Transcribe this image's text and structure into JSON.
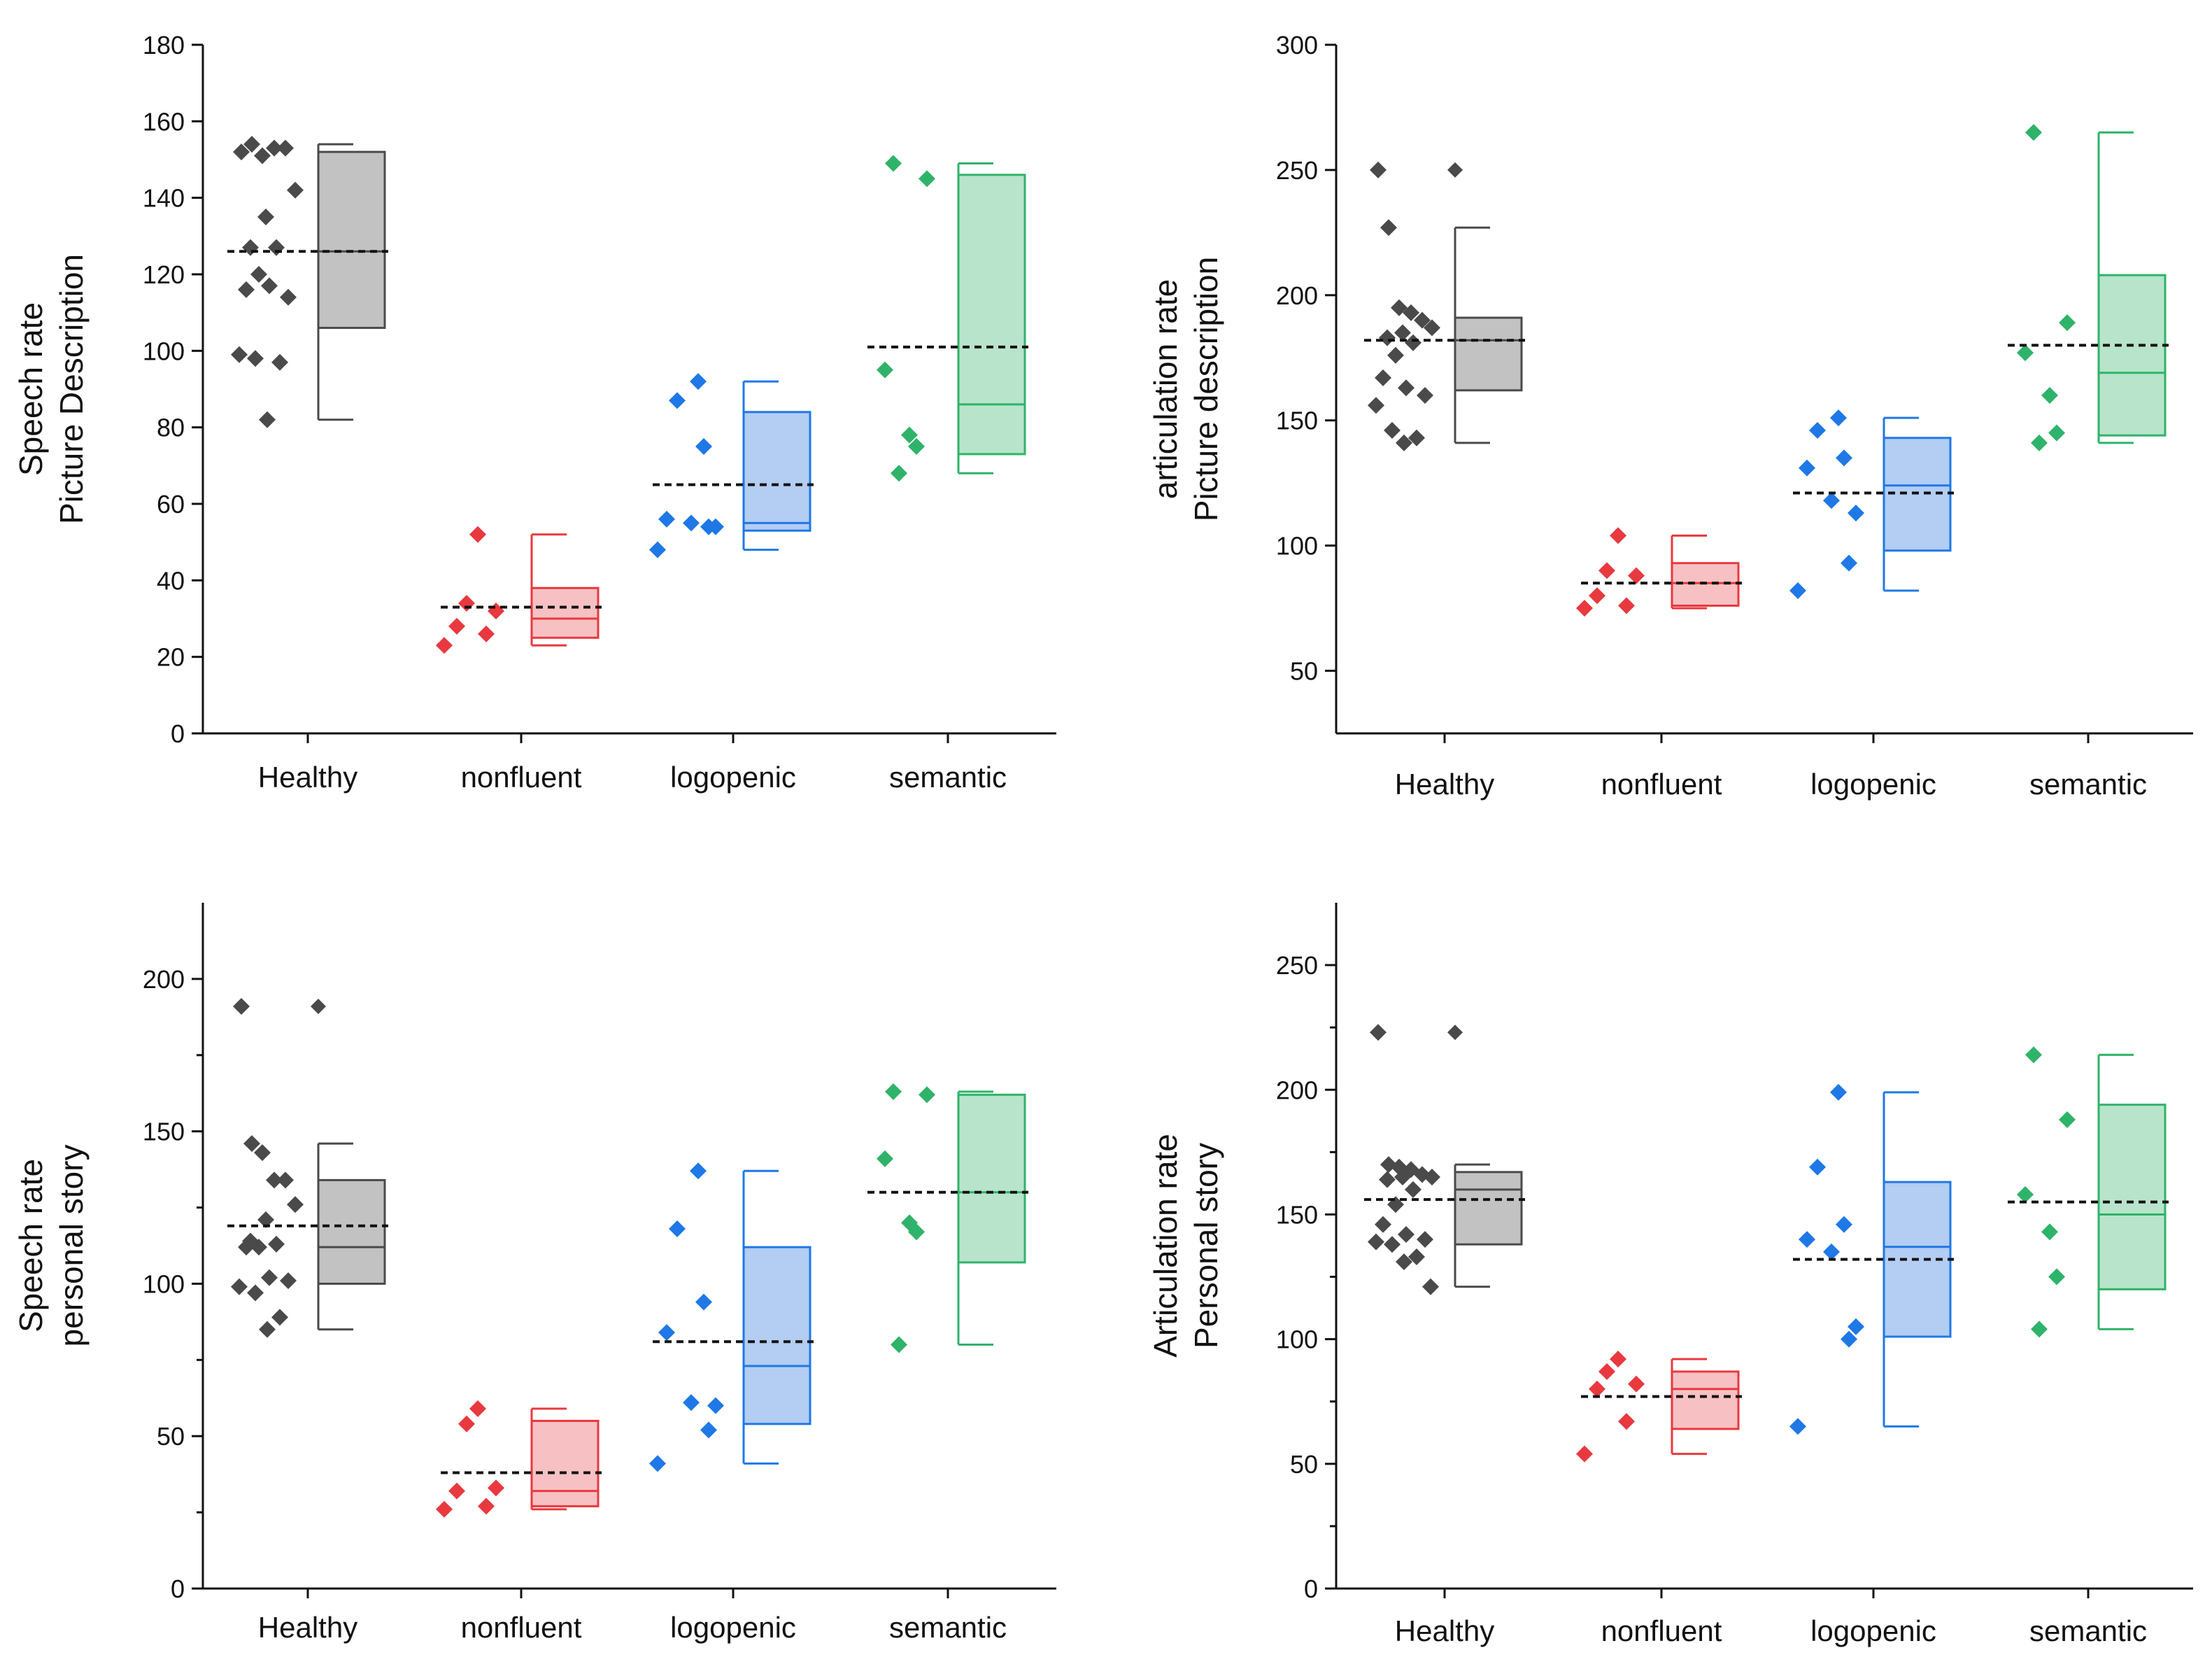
{
  "colors": {
    "Healthy": "#4a4a4a",
    "nonfluent": "#e8393f",
    "logopenic": "#1f78e6",
    "semantic": "#2fb36a",
    "Healthy_fill": "#c2c2c2",
    "nonfluent_fill": "#f7c1c3",
    "logopenic_fill": "#b3cdf3",
    "semantic_fill": "#b8e4cb"
  },
  "chart_data": [
    {
      "type": "box_with_points",
      "title": "",
      "xlabel": "",
      "ylabel": [
        "Speech rate",
        "Picture Description"
      ],
      "categories": [
        "Healthy",
        "nonfluent",
        "logopenic",
        "semantic"
      ],
      "ylim": [
        0,
        180
      ],
      "yticks": [
        0,
        20,
        40,
        60,
        80,
        100,
        120,
        140,
        160,
        180
      ],
      "groups": [
        {
          "name": "Healthy",
          "points": [
            152,
            154,
            151,
            153,
            153,
            142,
            135,
            127,
            127,
            120,
            116,
            117,
            114,
            99,
            98,
            97,
            82
          ],
          "box": {
            "whisker_low": 82,
            "q1": 106,
            "median": 126,
            "q3": 152,
            "whisker_high": 154
          },
          "mean": 126
        },
        {
          "name": "nonfluent",
          "points": [
            52,
            34,
            32,
            28,
            26,
            23
          ],
          "box": {
            "whisker_low": 23,
            "q1": 25,
            "median": 30,
            "q3": 38,
            "whisker_high": 52
          },
          "mean": 33
        },
        {
          "name": "logopenic",
          "points": [
            92,
            87,
            75,
            56,
            55,
            54,
            54,
            48
          ],
          "box": {
            "whisker_low": 48,
            "q1": 53,
            "median": 55,
            "q3": 84,
            "whisker_high": 92
          },
          "mean": 65
        },
        {
          "name": "semantic",
          "points": [
            149,
            145,
            95,
            78,
            75,
            68
          ],
          "box": {
            "whisker_low": 68,
            "q1": 73,
            "median": 86,
            "q3": 146,
            "whisker_high": 149
          },
          "mean": 101
        }
      ]
    },
    {
      "type": "box_with_points",
      "title": "",
      "xlabel": "",
      "ylabel": [
        "articulation rate",
        "Picture description"
      ],
      "categories": [
        "Healthy",
        "nonfluent",
        "logopenic",
        "semantic"
      ],
      "ylim": [
        25,
        300
      ],
      "yticks": [
        50,
        100,
        150,
        200,
        250,
        300
      ],
      "groups": [
        {
          "name": "Healthy",
          "points": [
            250,
            227,
            195,
            193,
            190,
            187,
            185,
            183,
            181,
            176,
            167,
            163,
            160,
            156,
            146,
            143,
            141
          ],
          "box": {
            "whisker_low": 141,
            "q1": 162,
            "median": 182,
            "q3": 191,
            "whisker_high": 227,
            "outlier": 250
          },
          "mean": 182
        },
        {
          "name": "nonfluent",
          "points": [
            104,
            90,
            88,
            80,
            76,
            75
          ],
          "box": {
            "whisker_low": 75,
            "q1": 76,
            "median": 85,
            "q3": 93,
            "whisker_high": 104
          },
          "mean": 85
        },
        {
          "name": "logopenic",
          "points": [
            151,
            146,
            135,
            131,
            118,
            113,
            93,
            82
          ],
          "box": {
            "whisker_low": 82,
            "q1": 98,
            "median": 124,
            "q3": 143,
            "whisker_high": 151
          },
          "mean": 121
        },
        {
          "name": "semantic",
          "points": [
            265,
            189,
            177,
            160,
            145,
            141
          ],
          "box": {
            "whisker_low": 141,
            "q1": 144,
            "median": 169,
            "q3": 208,
            "whisker_high": 265
          },
          "mean": 180
        }
      ]
    },
    {
      "type": "box_with_points",
      "title": "",
      "xlabel": "",
      "ylabel": [
        "Speech rate",
        "personal story"
      ],
      "categories": [
        "Healthy",
        "nonfluent",
        "logopenic",
        "semantic"
      ],
      "ylim": [
        0,
        225
      ],
      "yticks": [
        0,
        50,
        100,
        150,
        200
      ],
      "minor_yticks": [
        25,
        75,
        125,
        175
      ],
      "groups": [
        {
          "name": "Healthy",
          "points": [
            191,
            146,
            143,
            134,
            134,
            126,
            121,
            114,
            113,
            112,
            112,
            102,
            101,
            99,
            97,
            89,
            85
          ],
          "box": {
            "whisker_low": 85,
            "q1": 100,
            "median": 112,
            "q3": 134,
            "whisker_high": 146,
            "outlier": 191
          },
          "mean": 119
        },
        {
          "name": "nonfluent",
          "points": [
            59,
            54,
            33,
            32,
            27,
            26
          ],
          "box": {
            "whisker_low": 26,
            "q1": 27,
            "median": 32,
            "q3": 55,
            "whisker_high": 59
          },
          "mean": 38
        },
        {
          "name": "logopenic",
          "points": [
            137,
            118,
            94,
            84,
            61,
            60,
            52,
            41
          ],
          "box": {
            "whisker_low": 41,
            "q1": 54,
            "median": 73,
            "q3": 112,
            "whisker_high": 137
          },
          "mean": 81
        },
        {
          "name": "semantic",
          "points": [
            163,
            162,
            141,
            120,
            117,
            80
          ],
          "box": {
            "whisker_low": 80,
            "q1": 107,
            "median": 130,
            "q3": 162,
            "whisker_high": 163
          },
          "mean": 130
        }
      ]
    },
    {
      "type": "box_with_points",
      "title": "",
      "xlabel": "",
      "ylabel": [
        "Articulation rate",
        "Personal story"
      ],
      "categories": [
        "Healthy",
        "nonfluent",
        "logopenic",
        "semantic"
      ],
      "ylim": [
        0,
        275
      ],
      "yticks": [
        0,
        50,
        100,
        150,
        200,
        250
      ],
      "minor_yticks": [
        25,
        75,
        125,
        175,
        225
      ],
      "groups": [
        {
          "name": "Healthy",
          "points": [
            223,
            170,
            169,
            168,
            166,
            165,
            165,
            164,
            160,
            154,
            146,
            142,
            140,
            139,
            138,
            133,
            131,
            121
          ],
          "box": {
            "whisker_low": 121,
            "q1": 138,
            "median": 160,
            "q3": 167,
            "whisker_high": 170,
            "outlier": 223
          },
          "mean": 156
        },
        {
          "name": "nonfluent",
          "points": [
            92,
            87,
            82,
            80,
            67,
            54
          ],
          "box": {
            "whisker_low": 54,
            "q1": 64,
            "median": 80,
            "q3": 87,
            "whisker_high": 92
          },
          "mean": 77
        },
        {
          "name": "logopenic",
          "points": [
            199,
            169,
            146,
            140,
            135,
            105,
            100,
            65
          ],
          "box": {
            "whisker_low": 65,
            "q1": 101,
            "median": 137,
            "q3": 163,
            "whisker_high": 199
          },
          "mean": 132
        },
        {
          "name": "semantic",
          "points": [
            214,
            188,
            158,
            143,
            125,
            104
          ],
          "box": {
            "whisker_low": 104,
            "q1": 120,
            "median": 150,
            "q3": 194,
            "whisker_high": 214
          },
          "mean": 155
        }
      ]
    }
  ]
}
